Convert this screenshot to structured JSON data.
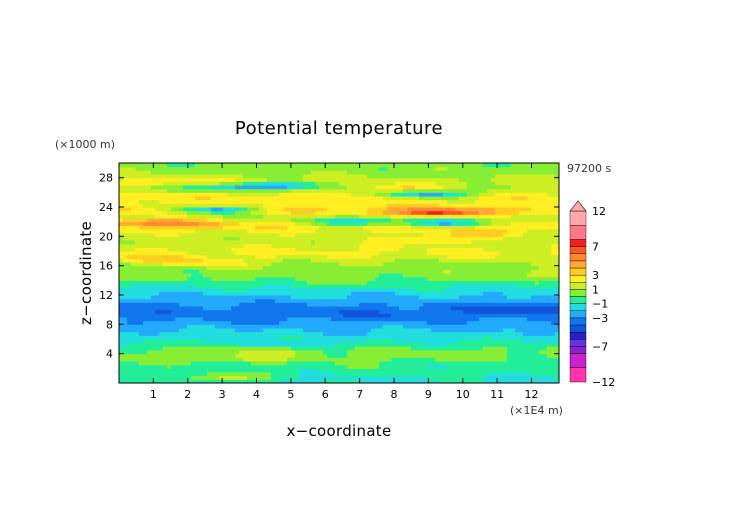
{
  "chart_data": {
    "type": "heatmap",
    "title": "Potential temperature",
    "xlabel": "x−coordinate",
    "ylabel": "z−coordinate",
    "x_unit": "(×1E4 m)",
    "y_unit": "(×1000 m)",
    "time_label": "97200 s",
    "xlim": [
      0,
      12.8
    ],
    "ylim": [
      0,
      30
    ],
    "x_ticks": [
      1,
      2,
      3,
      4,
      5,
      6,
      7,
      8,
      9,
      10,
      11,
      12
    ],
    "y_ticks": [
      4,
      8,
      12,
      16,
      20,
      24,
      28
    ],
    "grid": false,
    "colorbar": {
      "range": [
        -12,
        12
      ],
      "labels": [
        "12",
        "7",
        "3",
        "1",
        "−1",
        "−3",
        "−7",
        "−12"
      ],
      "levels": [
        -12,
        -10,
        -8,
        -7,
        -6,
        -5,
        -4,
        -3,
        -2,
        -1,
        0,
        1,
        2,
        3,
        4,
        5,
        6,
        7,
        8,
        10,
        12
      ],
      "colors": [
        "#ff33aa",
        "#cc22cc",
        "#8822cc",
        "#6633dd",
        "#2222cc",
        "#1155dd",
        "#1177ee",
        "#22aaff",
        "#22dddd",
        "#22ee99",
        "#88ee33",
        "#ccee22",
        "#ffee22",
        "#ffcc22",
        "#ffaa33",
        "#ff8833",
        "#ff5522",
        "#ee2222",
        "#ff7788",
        "#ffaaaa"
      ],
      "extend_top": "triangle"
    },
    "field_rows": [
      {
        "z": 29.5,
        "value": 0.4
      },
      {
        "z": 28.5,
        "value": 0.8
      },
      {
        "z": 27.5,
        "value": 1.5
      },
      {
        "z": 26.5,
        "value": 1.0
      },
      {
        "z": 25.5,
        "value": 2.6
      },
      {
        "z": 24.5,
        "value": 2.4
      },
      {
        "z": 23.5,
        "value": 3.3
      },
      {
        "z": 22.5,
        "value": 0.8
      },
      {
        "z": 21.5,
        "value": 3.0
      },
      {
        "z": 20.5,
        "value": 1.8
      },
      {
        "z": 19.5,
        "value": 1.2
      },
      {
        "z": 18.5,
        "value": 1.9
      },
      {
        "z": 17.5,
        "value": 2.2
      },
      {
        "z": 16.5,
        "value": 0.9
      },
      {
        "z": 15.5,
        "value": 0.5
      },
      {
        "z": 14.5,
        "value": 0.4
      },
      {
        "z": 13.5,
        "value": -0.8
      },
      {
        "z": 12.5,
        "value": -1.6
      },
      {
        "z": 11.5,
        "value": -2.3
      },
      {
        "z": 10.5,
        "value": -3.3
      },
      {
        "z": 9.5,
        "value": -3.6
      },
      {
        "z": 8.5,
        "value": -3.0
      },
      {
        "z": 7.5,
        "value": -2.2
      },
      {
        "z": 6.5,
        "value": -1.6
      },
      {
        "z": 5.5,
        "value": -0.8
      },
      {
        "z": 4.5,
        "value": 0.2
      },
      {
        "z": 3.5,
        "value": 0.3
      },
      {
        "z": 2.5,
        "value": -0.3
      },
      {
        "z": 1.5,
        "value": -0.6
      },
      {
        "z": 0.5,
        "value": -1.2
      }
    ],
    "anomalies": [
      {
        "x": 4.5,
        "z": 27.0,
        "value": -3.3
      },
      {
        "x": 3.1,
        "z": 26.8,
        "value": -1.2
      },
      {
        "x": 9.0,
        "z": 25.8,
        "value": -2.5
      },
      {
        "x": 9.3,
        "z": 23.2,
        "value": 6.5
      },
      {
        "x": 8.5,
        "z": 23.5,
        "value": 4.2
      },
      {
        "x": 10.5,
        "z": 23.8,
        "value": 3.6
      },
      {
        "x": 2.8,
        "z": 23.7,
        "value": -2.0
      },
      {
        "x": 6.8,
        "z": 22.0,
        "value": -1.6
      },
      {
        "x": 9.5,
        "z": 21.8,
        "value": -1.8
      },
      {
        "x": 0.8,
        "z": 22.0,
        "value": 5.2
      },
      {
        "x": 2.2,
        "z": 21.8,
        "value": 4.0
      },
      {
        "x": 10.5,
        "z": 20.5,
        "value": 3.4
      },
      {
        "x": 9.0,
        "z": 19.6,
        "value": 3.3
      },
      {
        "x": 1.0,
        "z": 17.0,
        "value": 3.2
      },
      {
        "x": 2.5,
        "z": 16.4,
        "value": 3.0
      },
      {
        "x": 4.0,
        "z": 27.3,
        "value": 3.2
      },
      {
        "x": 8.2,
        "z": 26.6,
        "value": 3.0
      },
      {
        "x": 1.2,
        "z": 27.5,
        "value": 3.1
      },
      {
        "x": 4.5,
        "z": 9.5,
        "value": -4.0
      },
      {
        "x": 10.8,
        "z": 10.3,
        "value": -4.2
      },
      {
        "x": 12.4,
        "z": 10.2,
        "value": -4.6
      },
      {
        "x": 7.5,
        "z": 9.3,
        "value": -4.0
      },
      {
        "x": 4.5,
        "z": 4.3,
        "value": 1.2
      },
      {
        "x": 3.8,
        "z": 3.4,
        "value": 1.3
      },
      {
        "x": 5.2,
        "z": 5.3,
        "value": -1.4
      },
      {
        "x": 3.0,
        "z": 0.8,
        "value": 1.4
      },
      {
        "x": 10.5,
        "z": 2.5,
        "value": -1.2
      },
      {
        "x": 6.0,
        "z": 13.5,
        "value": 0.2
      },
      {
        "x": 12.3,
        "z": 15.0,
        "value": 1.4
      }
    ]
  }
}
